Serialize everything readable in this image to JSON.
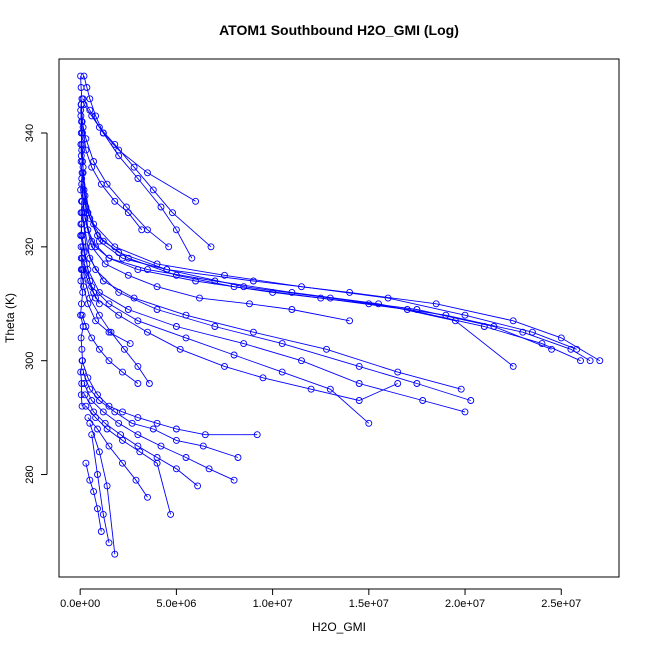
{
  "chart_data": {
    "type": "line",
    "title": "ATOM1 Southbound H2O_GMI (Log)",
    "xlabel": "H2O_GMI",
    "ylabel": "Theta (K)",
    "xlim": [
      -1100000.0,
      28000000.0
    ],
    "ylim": [
      262,
      353
    ],
    "x_ticks": [
      0,
      5000000,
      10000000,
      15000000,
      20000000,
      25000000
    ],
    "x_tick_labels": [
      "0.0e+00",
      "5.0e+06",
      "1.0e+07",
      "1.5e+07",
      "2.0e+07",
      "2.5e+07"
    ],
    "y_ticks": [
      280,
      300,
      320,
      340
    ],
    "y_tick_labels": [
      "280",
      "300",
      "320",
      "340"
    ],
    "grid": false,
    "markers": "open-circle",
    "color": "#0000ff",
    "series": [
      {
        "x": [
          50000,
          100000,
          200000,
          400000,
          800000,
          1500000,
          3000000,
          6000000,
          10000000,
          15000000,
          19000000,
          23000000,
          25500000,
          26500000
        ],
        "y": [
          345,
          338,
          330,
          323,
          320,
          318,
          316,
          314,
          312,
          310,
          308,
          305,
          302,
          300
        ]
      },
      {
        "x": [
          60000,
          150000,
          500000,
          1200000,
          2500000,
          5000000,
          8000000,
          12500000,
          17000000,
          21000000,
          24000000,
          26000000
        ],
        "y": [
          340,
          333,
          325,
          321,
          318,
          315,
          313,
          311,
          309,
          306,
          303,
          300
        ]
      },
      {
        "x": [
          40000,
          120000,
          300000,
          900000,
          2000000,
          4500000,
          9000000,
          14000000,
          18500000,
          22500000,
          25000000,
          27000000
        ],
        "y": [
          343,
          335,
          327,
          322,
          319,
          316,
          314,
          312,
          310,
          307,
          304,
          300
        ]
      },
      {
        "x": [
          80000,
          250000,
          700000,
          1800000,
          4000000,
          7500000,
          11500000,
          16000000,
          20000000,
          23500000,
          25800000
        ],
        "y": [
          337,
          329,
          324,
          320,
          317,
          315,
          313,
          311,
          308,
          305,
          302
        ]
      },
      {
        "x": [
          50000,
          200000,
          600000,
          1500000,
          3500000,
          7000000,
          11000000,
          15500000,
          19500000,
          22500000
        ],
        "y": [
          335,
          326,
          321,
          318,
          316,
          314,
          312,
          310,
          307,
          299
        ]
      },
      {
        "x": [
          100000,
          400000,
          1000000,
          2200000,
          4500000,
          8500000,
          13000000,
          17500000,
          21500000,
          24500000
        ],
        "y": [
          333,
          326,
          321,
          318,
          316,
          313,
          311,
          309,
          306,
          302
        ]
      },
      {
        "x": [
          70000,
          300000,
          800000,
          2000000,
          4000000,
          7000000,
          10500000,
          14500000,
          17500000,
          20300000
        ],
        "y": [
          328,
          320,
          316,
          312,
          309,
          306,
          303,
          299,
          296,
          293
        ]
      },
      {
        "x": [
          100000,
          500000,
          1200000,
          2800000,
          5500000,
          9000000,
          12800000,
          16500000,
          19800000
        ],
        "y": [
          326,
          318,
          314,
          311,
          308,
          305,
          302,
          298,
          295
        ]
      },
      {
        "x": [
          90000,
          400000,
          1000000,
          2500000,
          5000000,
          8500000,
          11500000,
          14500000,
          17800000,
          20000000
        ],
        "y": [
          322,
          316,
          312,
          309,
          306,
          303,
          300,
          296,
          293,
          291
        ]
      },
      {
        "x": [
          120000,
          600000,
          1500000,
          3000000,
          5500000,
          8000000,
          10500000,
          13000000,
          15000000
        ],
        "y": [
          318,
          313,
          310,
          307,
          304,
          301,
          298,
          295,
          289
        ]
      },
      {
        "x": [
          150000,
          800000,
          2000000,
          3500000,
          5200000,
          7500000,
          9500000,
          12000000,
          14500000,
          16500000
        ],
        "y": [
          316,
          311,
          308,
          305,
          302,
          299,
          297,
          295,
          293,
          296
        ]
      },
      {
        "x": [
          200000,
          600000,
          1200000,
          2000000,
          3000000,
          4200000,
          5000000,
          5800000
        ],
        "y": [
          345,
          343,
          340,
          336,
          332,
          327,
          323,
          318
        ]
      },
      {
        "x": [
          150000,
          500000,
          1000000,
          1800000,
          2800000,
          3800000,
          4800000,
          6800000
        ],
        "y": [
          346,
          344,
          341,
          338,
          334,
          330,
          326,
          320
        ]
      },
      {
        "x": [
          100000,
          300000,
          700000,
          1400000,
          2400000,
          3500000,
          4600000
        ],
        "y": [
          342,
          339,
          335,
          331,
          327,
          323,
          320
        ]
      },
      {
        "x": [
          50000,
          200000,
          500000,
          1000000,
          1600000,
          2300000,
          3000000,
          3600000
        ],
        "y": [
          320,
          315,
          311,
          308,
          305,
          302,
          299,
          296
        ]
      },
      {
        "x": [
          100000,
          400000,
          900000,
          1500000,
          2200000,
          3000000,
          4000000,
          5000000,
          6500000,
          9200000
        ],
        "y": [
          300,
          297,
          294,
          292,
          291,
          290,
          289,
          288,
          287,
          287
        ]
      },
      {
        "x": [
          150000,
          500000,
          1000000,
          1800000,
          2700000,
          3800000,
          5000000,
          6400000,
          8200000
        ],
        "y": [
          298,
          295,
          293,
          291,
          289,
          288,
          286,
          285,
          283
        ]
      },
      {
        "x": [
          200000,
          600000,
          1200000,
          2000000,
          3000000,
          4200000,
          5500000,
          6700000,
          8000000
        ],
        "y": [
          296,
          293,
          291,
          289,
          287,
          285,
          283,
          281,
          279
        ]
      },
      {
        "x": [
          250000,
          700000,
          1300000,
          2100000,
          3000000,
          4000000,
          5000000,
          6100000
        ],
        "y": [
          294,
          291,
          289,
          287,
          285,
          283,
          281,
          278
        ]
      },
      {
        "x": [
          300000,
          800000,
          1400000,
          2200000,
          3100000,
          4000000,
          4700000
        ],
        "y": [
          292,
          290,
          288,
          286,
          284,
          282,
          273
        ]
      },
      {
        "x": [
          400000,
          900000,
          1500000,
          2200000,
          2900000,
          3500000
        ],
        "y": [
          290,
          288,
          285,
          282,
          279,
          276
        ]
      },
      {
        "x": [
          500000,
          1000000,
          1400000,
          1800000
        ],
        "y": [
          289,
          284,
          278,
          266
        ]
      },
      {
        "x": [
          600000,
          900000,
          1200000,
          1500000
        ],
        "y": [
          287,
          280,
          273,
          268
        ]
      },
      {
        "x": [
          300000,
          500000,
          700000,
          900000,
          1100000
        ],
        "y": [
          282,
          279,
          277,
          274,
          270
        ]
      },
      {
        "x": [
          200000,
          350000,
          500000,
          800000,
          1200000,
          2000000,
          3500000,
          6000000
        ],
        "y": [
          350,
          348,
          346,
          343,
          340,
          337,
          333,
          328
        ]
      },
      {
        "x": [
          60000,
          150000,
          300000,
          600000,
          1100000,
          1800000,
          2500000,
          3200000
        ],
        "y": [
          345,
          341,
          337,
          334,
          331,
          328,
          326,
          323
        ]
      },
      {
        "x": [
          80000,
          250000,
          600000,
          1300000,
          2500000,
          4000000,
          6200000,
          8800000,
          11000000,
          14000000
        ],
        "y": [
          331,
          325,
          320,
          317,
          315,
          313,
          311,
          310,
          309,
          307
        ]
      },
      {
        "x": [
          40000,
          100000,
          200000,
          350000,
          500000,
          700000,
          1000000
        ],
        "y": [
          324,
          322,
          319,
          317,
          314,
          312,
          310
        ]
      },
      {
        "x": [
          60000,
          180000,
          400000,
          800000,
          1500000,
          2600000
        ],
        "y": [
          316,
          313,
          310,
          307,
          305,
          303
        ]
      },
      {
        "x": [
          100000,
          300000,
          600000,
          1000000,
          1500000,
          2200000,
          3000000
        ],
        "y": [
          308,
          306,
          304,
          302,
          300,
          298,
          296
        ]
      }
    ],
    "vertical_core": {
      "x": [
        20000,
        50000,
        90000,
        30000,
        70000,
        120000,
        40000,
        60000,
        150000,
        80000,
        20000,
        110000,
        50000,
        90000,
        30000,
        140000,
        60000,
        100000,
        40000,
        130000,
        70000,
        20000,
        160000,
        50000,
        90000,
        120000,
        30000,
        80000,
        60000,
        100000
      ],
      "y": [
        350,
        348,
        346,
        344,
        342,
        340,
        338,
        336,
        334,
        332,
        330,
        328,
        326,
        324,
        322,
        320,
        318,
        316,
        314,
        312,
        310,
        308,
        306,
        304,
        302,
        300,
        298,
        296,
        294,
        292
      ]
    }
  }
}
